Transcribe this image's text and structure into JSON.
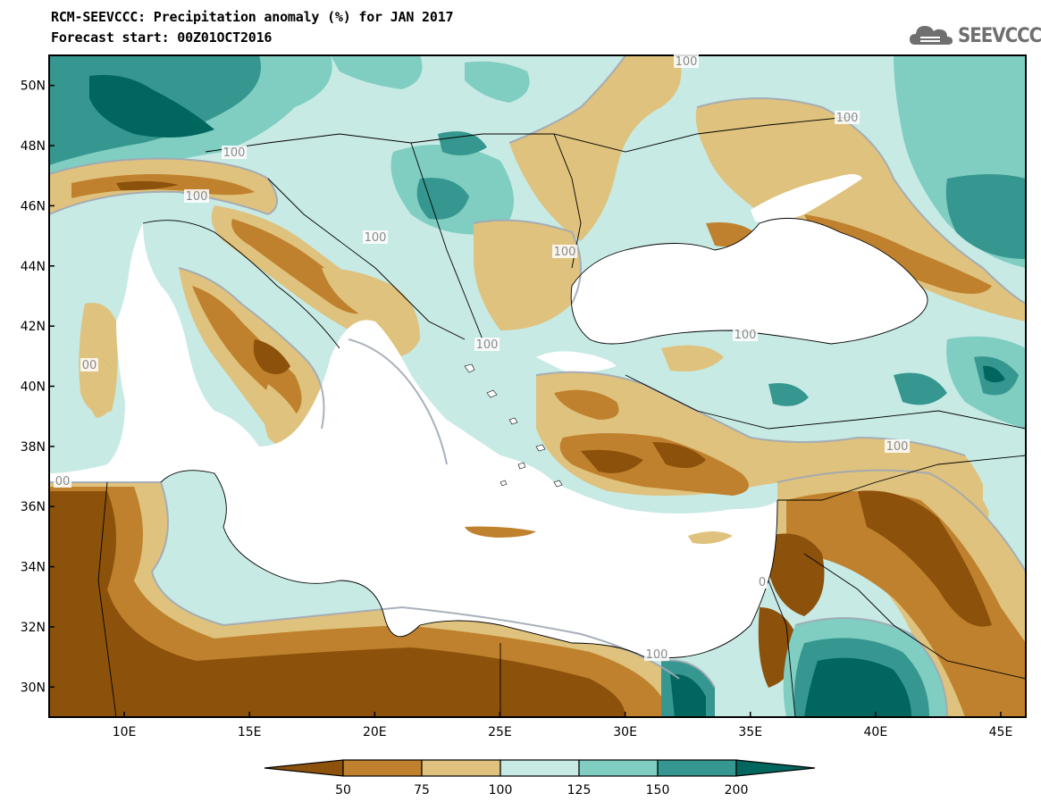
{
  "title": {
    "line1": "RCM-SEEVCCC: Precipitation anomaly (%) for JAN 2017",
    "line2": "Forecast start: 00Z01OCT2016"
  },
  "logo": {
    "text": "SEEVCCC",
    "icon": "cloud-icon"
  },
  "map": {
    "lon_range": [
      7,
      46
    ],
    "lat_range": [
      29,
      51
    ],
    "x_ticks": [
      "10E",
      "15E",
      "20E",
      "25E",
      "30E",
      "35E",
      "40E",
      "45E"
    ],
    "y_ticks": [
      "30N",
      "32N",
      "34N",
      "36N",
      "38N",
      "40N",
      "42N",
      "44N",
      "46N",
      "48N",
      "50N"
    ],
    "contour_labels": [
      "100",
      "100",
      "100",
      "100",
      "100",
      "100",
      "100",
      "100",
      "100",
      "100",
      "00",
      "00",
      "0"
    ]
  },
  "colorbar": {
    "ticks": [
      "50",
      "75",
      "100",
      "125",
      "150",
      "200"
    ],
    "colors": [
      "#8c510a",
      "#bf812d",
      "#dfc27d",
      "#c7eae5",
      "#80cdc1",
      "#35978f",
      "#01665e"
    ]
  }
}
